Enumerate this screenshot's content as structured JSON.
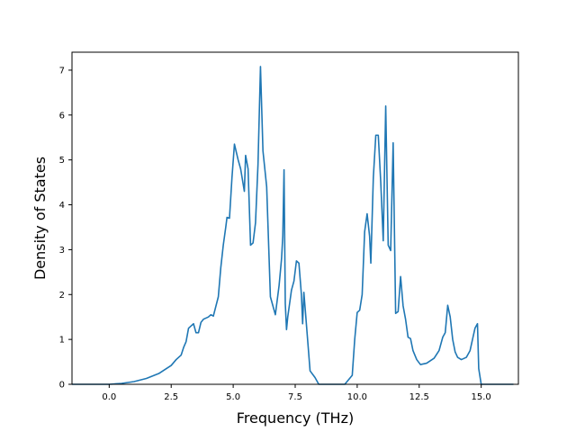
{
  "chart_data": {
    "type": "line",
    "title": "",
    "xlabel": "Frequency (THz)",
    "ylabel": "Density of States",
    "xlim": [
      -1.5,
      16.5
    ],
    "ylim": [
      0,
      7.4
    ],
    "xticks": [
      0.0,
      2.5,
      5.0,
      7.5,
      10.0,
      12.5,
      15.0
    ],
    "xtick_labels": [
      "0.0",
      "2.5",
      "5.0",
      "7.5",
      "10.0",
      "12.5",
      "15.0"
    ],
    "yticks": [
      0,
      1,
      2,
      3,
      4,
      5,
      6,
      7
    ],
    "ytick_labels": [
      "0",
      "1",
      "2",
      "3",
      "4",
      "5",
      "6",
      "7"
    ],
    "grid": false,
    "series": [
      {
        "color": "#1f77b4",
        "x": [
          -1.5,
          -0.5,
          0.0,
          0.5,
          1.0,
          1.5,
          2.0,
          2.5,
          2.7,
          2.9,
          3.0,
          3.1,
          3.2,
          3.4,
          3.5,
          3.6,
          3.7,
          3.8,
          4.0,
          4.1,
          4.2,
          4.4,
          4.5,
          4.6,
          4.7,
          4.75,
          4.85,
          4.95,
          5.05,
          5.2,
          5.3,
          5.45,
          5.5,
          5.6,
          5.7,
          5.8,
          5.9,
          6.0,
          6.1,
          6.2,
          6.35,
          6.5,
          6.6,
          6.7,
          6.85,
          6.95,
          7.0,
          7.05,
          7.1,
          7.15,
          7.2,
          7.35,
          7.45,
          7.55,
          7.65,
          7.75,
          7.8,
          7.85,
          7.9,
          8.0,
          8.1,
          8.3,
          8.45,
          8.6,
          9.5,
          9.8,
          9.9,
          10.0,
          10.1,
          10.2,
          10.3,
          10.4,
          10.5,
          10.55,
          10.65,
          10.75,
          10.85,
          10.95,
          11.05,
          11.15,
          11.25,
          11.35,
          11.45,
          11.55,
          11.65,
          11.75,
          11.85,
          11.95,
          12.05,
          12.15,
          12.25,
          12.4,
          12.55,
          12.8,
          13.1,
          13.3,
          13.45,
          13.55,
          13.65,
          13.75,
          13.85,
          13.95,
          14.05,
          14.2,
          14.4,
          14.55,
          14.65,
          14.75,
          14.85,
          14.9,
          15.0,
          16.3
        ],
        "y": [
          0.0,
          0.0,
          0.0,
          0.02,
          0.06,
          0.13,
          0.24,
          0.42,
          0.55,
          0.65,
          0.82,
          0.95,
          1.25,
          1.35,
          1.15,
          1.15,
          1.38,
          1.45,
          1.5,
          1.55,
          1.52,
          1.95,
          2.6,
          3.1,
          3.5,
          3.72,
          3.7,
          4.6,
          5.35,
          5.0,
          4.8,
          4.3,
          5.1,
          4.8,
          3.1,
          3.15,
          3.6,
          4.9,
          7.08,
          5.2,
          4.4,
          1.95,
          1.75,
          1.55,
          2.2,
          2.8,
          3.3,
          4.78,
          1.8,
          1.22,
          1.5,
          2.1,
          2.3,
          2.75,
          2.7,
          2.0,
          1.35,
          2.05,
          1.7,
          1.0,
          0.3,
          0.15,
          0.0,
          0.0,
          0.0,
          0.2,
          1.0,
          1.6,
          1.65,
          2.0,
          3.4,
          3.8,
          3.3,
          2.7,
          4.6,
          5.55,
          5.55,
          4.5,
          3.2,
          6.2,
          3.1,
          2.98,
          5.38,
          1.58,
          1.62,
          2.4,
          1.75,
          1.45,
          1.05,
          1.02,
          0.75,
          0.55,
          0.44,
          0.47,
          0.58,
          0.75,
          1.05,
          1.15,
          1.76,
          1.5,
          1.0,
          0.72,
          0.6,
          0.55,
          0.6,
          0.75,
          1.0,
          1.25,
          1.35,
          0.35,
          0.0,
          0.0
        ]
      }
    ]
  }
}
